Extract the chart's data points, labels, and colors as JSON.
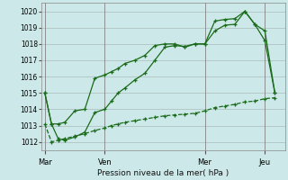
{
  "title": "Pression niveau de la mer( hPa )",
  "bg_color": "#cce8e8",
  "grid_color": "#aabbbb",
  "line_color": "#1a6b1a",
  "ylim": [
    1011.5,
    1020.5
  ],
  "yticks": [
    1012,
    1013,
    1014,
    1015,
    1016,
    1017,
    1018,
    1019,
    1020
  ],
  "xtick_labels": [
    "Mar",
    "Ven",
    "Mer",
    "Jeu"
  ],
  "xtick_positions": [
    0,
    18,
    48,
    66
  ],
  "vline_positions": [
    0,
    18,
    48,
    66
  ],
  "n_points": 72,
  "line1_x": [
    0,
    2,
    4,
    6,
    9,
    12,
    15,
    18,
    20,
    22,
    24,
    27,
    30,
    33,
    36,
    39,
    42,
    45,
    48,
    51,
    54,
    57,
    60,
    63,
    66,
    69
  ],
  "line1_y": [
    1015.0,
    1013.1,
    1013.1,
    1013.2,
    1013.9,
    1014.0,
    1015.9,
    1016.1,
    1016.3,
    1016.5,
    1016.8,
    1017.0,
    1017.3,
    1017.9,
    1018.0,
    1018.0,
    1017.8,
    1018.0,
    1018.0,
    1019.4,
    1019.5,
    1019.55,
    1020.0,
    1019.2,
    1018.2,
    1015.0
  ],
  "line2_x": [
    0,
    2,
    4,
    6,
    9,
    12,
    15,
    18,
    20,
    22,
    24,
    27,
    30,
    33,
    36,
    39,
    42,
    45,
    48,
    51,
    54,
    57,
    60,
    63,
    66,
    69
  ],
  "line2_y": [
    1015.0,
    1013.1,
    1012.2,
    1012.1,
    1012.3,
    1012.6,
    1013.8,
    1014.0,
    1014.5,
    1015.0,
    1015.3,
    1015.8,
    1016.2,
    1017.0,
    1017.8,
    1017.9,
    1017.85,
    1018.0,
    1018.0,
    1018.8,
    1019.15,
    1019.2,
    1020.0,
    1019.2,
    1018.8,
    1015.0
  ],
  "line3_x": [
    0,
    2,
    4,
    6,
    9,
    12,
    15,
    18,
    20,
    22,
    24,
    27,
    30,
    33,
    36,
    39,
    42,
    45,
    48,
    51,
    54,
    57,
    60,
    63,
    66,
    69
  ],
  "line3_y": [
    1013.1,
    1012.0,
    1012.1,
    1012.2,
    1012.35,
    1012.5,
    1012.7,
    1012.85,
    1013.0,
    1013.1,
    1013.2,
    1013.3,
    1013.4,
    1013.5,
    1013.6,
    1013.65,
    1013.7,
    1013.75,
    1013.9,
    1014.1,
    1014.2,
    1014.3,
    1014.45,
    1014.5,
    1014.65,
    1014.7
  ]
}
